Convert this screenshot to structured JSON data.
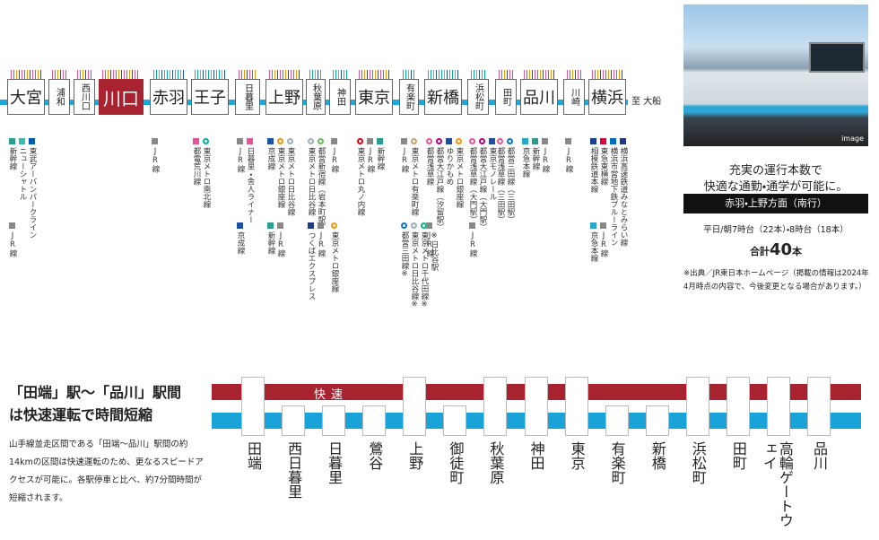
{
  "top_route": {
    "destination": "至 大船",
    "stations": [
      {
        "name": "大宮",
        "highlight": false,
        "lines": [
          {
            "name": "新幹線",
            "color": "#2a9d8f",
            "marker": "square"
          },
          {
            "name": "ニューシャトル",
            "color": "#3fb8af",
            "marker": "square"
          },
          {
            "name": "東武アーバンパークライン",
            "color": "#005bac",
            "marker": "square"
          }
        ],
        "lines_lower": [
          {
            "name": "JR線",
            "color": "#888888",
            "marker": "square"
          }
        ]
      },
      {
        "name": "浦和",
        "highlight": false,
        "lines": [],
        "lines_lower": []
      },
      {
        "name": "西川口",
        "highlight": false,
        "lines": [],
        "lines_lower": []
      },
      {
        "name": "川口",
        "highlight": true,
        "lines": [],
        "lines_lower": []
      },
      {
        "name": "赤羽",
        "highlight": false,
        "lines": [
          {
            "name": "JR線",
            "color": "#888888",
            "marker": "square"
          }
        ],
        "lines_lower": []
      },
      {
        "name": "王子",
        "highlight": false,
        "lines": [
          {
            "name": "都電荒川線",
            "color": "#e85298",
            "marker": "square"
          },
          {
            "name": "東京メトロ南北線",
            "color": "#00ada9",
            "marker": "circle"
          }
        ],
        "lines_lower": []
      },
      {
        "name": "日暮里",
        "highlight": false,
        "lines": [
          {
            "name": "JR線",
            "color": "#888888",
            "marker": "square"
          },
          {
            "name": "日暮里・舎人ライナー",
            "color": "#e85298",
            "marker": "square"
          }
        ],
        "lines_lower": [
          {
            "name": "京成線",
            "color": "#1e50a2",
            "marker": "square"
          }
        ]
      },
      {
        "name": "上野",
        "highlight": false,
        "lines": [
          {
            "name": "京成線",
            "color": "#1e50a2",
            "marker": "square"
          },
          {
            "name": "東京メトロ銀座線",
            "color": "#f39700",
            "marker": "circle"
          },
          {
            "name": "東京メトロ日比谷線",
            "color": "#9caeb7",
            "marker": "circle"
          }
        ],
        "lines_lower": [
          {
            "name": "新幹線",
            "color": "#2a9d8f",
            "marker": "square"
          },
          {
            "name": "JR線",
            "color": "#888888",
            "marker": "square"
          }
        ]
      },
      {
        "name": "秋葉原",
        "highlight": false,
        "lines": [
          {
            "name": "東京メトロ日比谷線",
            "color": "#9caeb7",
            "marker": "circle"
          },
          {
            "name": "都営新宿線（岩本町駅）",
            "color": "#6cbb5a",
            "marker": "circle"
          }
        ],
        "lines_lower": [
          {
            "name": "つくばエクスプレス",
            "color": "#1e3a8a",
            "marker": "square"
          },
          {
            "name": "JR線",
            "color": "#888888",
            "marker": "square"
          }
        ]
      },
      {
        "name": "神田",
        "highlight": false,
        "lines": [
          {
            "name": "JR線",
            "color": "#888888",
            "marker": "square"
          }
        ],
        "lines_lower": [
          {
            "name": "東京メトロ銀座線",
            "color": "#f39700",
            "marker": "circle"
          }
        ]
      },
      {
        "name": "東京",
        "highlight": false,
        "lines": [
          {
            "name": "東京メトロ丸ノ内線",
            "color": "#e60012",
            "marker": "circle"
          },
          {
            "name": "JR線",
            "color": "#888888",
            "marker": "square"
          },
          {
            "name": "新幹線",
            "color": "#2a9d8f",
            "marker": "square"
          }
        ],
        "lines_lower": []
      },
      {
        "name": "有楽町",
        "highlight": false,
        "lines": [
          {
            "name": "JR線",
            "color": "#888888",
            "marker": "square"
          },
          {
            "name": "東京メトロ有楽町線",
            "color": "#c1a470",
            "marker": "circle"
          }
        ],
        "lines_lower": [
          {
            "name": "都営三田線※",
            "color": "#0079c2",
            "marker": "circle"
          },
          {
            "name": "東京メトロ日比谷線※",
            "color": "#9caeb7",
            "marker": "circle"
          },
          {
            "name": "東京メトロ千代田線※",
            "color": "#00bb85",
            "marker": "circle"
          },
          {
            "name": "※日比谷駅",
            "color": "#ffffff",
            "marker": "none"
          }
        ]
      },
      {
        "name": "新橋",
        "highlight": false,
        "lines": [
          {
            "name": "都営浅草線",
            "color": "#e85298",
            "marker": "circle"
          },
          {
            "name": "都営大江戸線（汐留駅）",
            "color": "#b6007a",
            "marker": "circle"
          },
          {
            "name": "ゆりかもめ",
            "color": "#1a4ca0",
            "marker": "square"
          },
          {
            "name": "東京メトロ銀座線",
            "color": "#f39700",
            "marker": "circle"
          }
        ],
        "lines_lower": [
          {
            "name": "JR線",
            "color": "#888888",
            "marker": "square"
          }
        ]
      },
      {
        "name": "浜松町",
        "highlight": false,
        "lines": [
          {
            "name": "都営浅草線（大門駅）",
            "color": "#e85298",
            "marker": "circle"
          },
          {
            "name": "都営大江戸線（大門駅）",
            "color": "#b6007a",
            "marker": "circle"
          },
          {
            "name": "東京モノレール",
            "color": "#1e50a2",
            "marker": "square"
          }
        ],
        "lines_lower": [
          {
            "name": "JR線",
            "color": "#888888",
            "marker": "square"
          }
        ]
      },
      {
        "name": "田町",
        "highlight": false,
        "lines": [
          {
            "name": "都営浅草線（三田駅）",
            "color": "#e85298",
            "marker": "circle"
          },
          {
            "name": "都営三田線（三田駅）",
            "color": "#0079c2",
            "marker": "circle"
          }
        ],
        "lines_lower": []
      },
      {
        "name": "品川",
        "highlight": false,
        "lines": [
          {
            "name": "京急本線",
            "color": "#2aa7c9",
            "marker": "square"
          },
          {
            "name": "新幹線",
            "color": "#2a9d8f",
            "marker": "square"
          },
          {
            "name": "JR線",
            "color": "#888888",
            "marker": "square"
          }
        ],
        "lines_lower": []
      },
      {
        "name": "川崎",
        "highlight": false,
        "lines": [
          {
            "name": "JR線",
            "color": "#888888",
            "marker": "square"
          }
        ],
        "lines_lower": []
      },
      {
        "name": "横浜",
        "highlight": false,
        "lines": [
          {
            "name": "相模鉄道本線",
            "color": "#1c3c8c",
            "marker": "square"
          },
          {
            "name": "東急東横線",
            "color": "#da0442",
            "marker": "square"
          },
          {
            "name": "横浜市営地下鉄ブルーライン",
            "color": "#0070c0",
            "marker": "square"
          },
          {
            "name": "横浜高速鉄道みなとみらい線",
            "color": "#203a87",
            "marker": "square"
          }
        ],
        "lines_lower": [
          {
            "name": "京急本線",
            "color": "#2aa7c9",
            "marker": "square"
          },
          {
            "name": "JR線",
            "color": "#888888",
            "marker": "square"
          }
        ]
      }
    ]
  },
  "info_panel": {
    "photo_caption": "image",
    "headline": [
      "充実の運行本数で",
      "快適な通勤・通学が可能に。"
    ],
    "direction": "赤羽・上野方面（南行）",
    "schedule": "平日/朝7時台（22本）・8時台（18本）",
    "total": {
      "prefix": "合計",
      "number": 40,
      "suffix": "本"
    },
    "note": "※出典／JR東日本ホームページ（掲載の情報は2024年4月時点の内容で、今後変更となる場合があります。）"
  },
  "rapid_section": {
    "heading": [
      "「田端」駅〜「品川」駅間",
      "は快速運転で時間短縮"
    ],
    "body": "山手線並走区間である「田端〜品川」駅間の約14kmの区間は快速運転のため、更なるスピードアクセスが可能に。各駅停車と比べ、約7分間時間が短縮されます。",
    "rapid_label": "快速",
    "stations": [
      {
        "name": "田端",
        "rapid": true
      },
      {
        "name": "西日暮里",
        "rapid": false
      },
      {
        "name": "日暮里",
        "rapid": false
      },
      {
        "name": "鶯谷",
        "rapid": false
      },
      {
        "name": "上野",
        "rapid": true
      },
      {
        "name": "御徒町",
        "rapid": false
      },
      {
        "name": "秋葉原",
        "rapid": true
      },
      {
        "name": "神田",
        "rapid": true
      },
      {
        "name": "東京",
        "rapid": true
      },
      {
        "name": "有楽町",
        "rapid": false
      },
      {
        "name": "新橋",
        "rapid": false
      },
      {
        "name": "浜松町",
        "rapid": true
      },
      {
        "name": "田町",
        "rapid": true
      },
      {
        "name": "高輪ゲートウェイ",
        "rapid": true
      },
      {
        "name": "品川",
        "rapid": true
      }
    ]
  }
}
